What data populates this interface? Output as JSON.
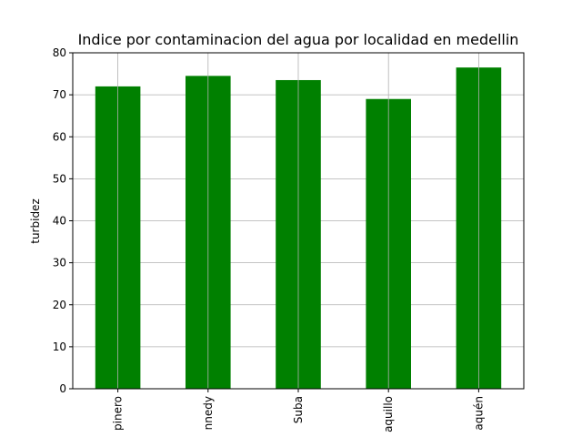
{
  "chart_data": {
    "type": "bar",
    "title": "Indice por contaminacion del agua por localidad en medellin",
    "xlabel": "",
    "ylabel": "turbidez",
    "categories": [
      "Chapinero",
      "Kennedy",
      "Suba",
      "Engativá Barranquillo",
      "Ciudad Bolívar Joaquén"
    ],
    "category_display": [
      "pinero",
      "nnedy",
      "Suba",
      "aquillo",
      "aquén"
    ],
    "values": [
      72,
      74.5,
      73.5,
      69,
      76.5
    ],
    "ylim": [
      0,
      80
    ],
    "yticks": [
      0,
      10,
      20,
      30,
      40,
      50,
      60,
      70,
      80
    ],
    "grid": true,
    "bar_color": "#008000",
    "grid_color": "#b0b0b0"
  }
}
